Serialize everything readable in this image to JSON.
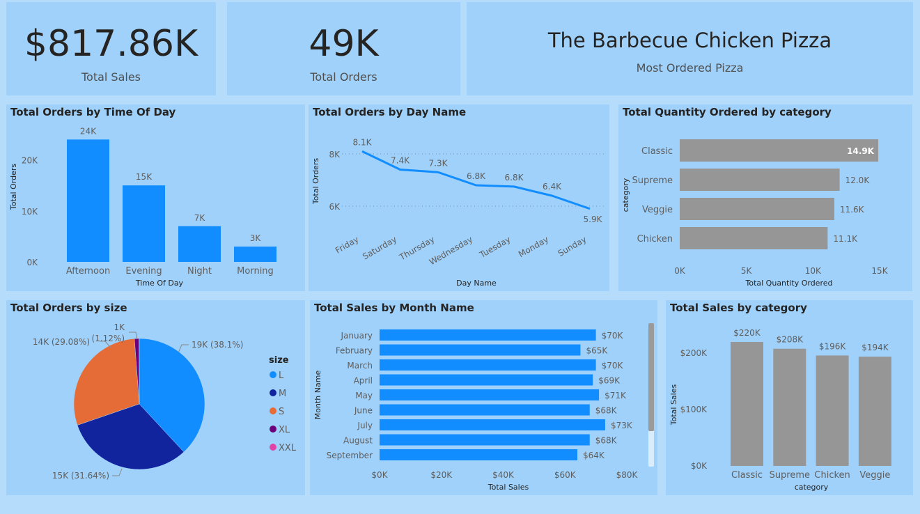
{
  "kpis": {
    "total_sales": {
      "value": "$817.86K",
      "label": "Total Sales"
    },
    "total_orders": {
      "value": "49K",
      "label": "Total Orders"
    },
    "most_ordered": {
      "value": "The Barbecue Chicken Pizza",
      "label": "Most Ordered Pizza"
    }
  },
  "colors": {
    "blue": "#118dff",
    "gray": "#969696",
    "card_bg": "#9fd1fb",
    "page_bg": "#b5dcfb",
    "size_L": "#118dff",
    "size_M": "#12239e",
    "size_S": "#e66c37",
    "size_XL": "#6b007b",
    "size_XXL": "#e044a7"
  },
  "chart_data": [
    {
      "id": "orders_by_time",
      "type": "bar",
      "title": "Total Orders by Time Of Day",
      "xlabel": "Time Of Day",
      "ylabel": "Total Orders",
      "categories": [
        "Afternoon",
        "Evening",
        "Night",
        "Morning"
      ],
      "values": [
        24000,
        15000,
        7000,
        3000
      ],
      "data_labels": [
        "24K",
        "15K",
        "7K",
        "3K"
      ],
      "yticks": [
        "0K",
        "10K",
        "20K"
      ],
      "ylim": [
        0,
        25000
      ]
    },
    {
      "id": "orders_by_day",
      "type": "line",
      "title": "Total Orders by Day Name",
      "xlabel": "Day Name",
      "ylabel": "Total Orders",
      "categories": [
        "Friday",
        "Saturday",
        "Thursday",
        "Wednesday",
        "Tuesday",
        "Monday",
        "Sunday"
      ],
      "values": [
        8100,
        7400,
        7300,
        6800,
        6750,
        6400,
        5900
      ],
      "data_labels": [
        "8.1K",
        "7.4K",
        "7.3K",
        "6.8K",
        "6.8K",
        "6.4K",
        "5.9K"
      ],
      "yticks": [
        "6K",
        "8K"
      ],
      "ylim": [
        5000,
        8600
      ]
    },
    {
      "id": "qty_by_category",
      "type": "bar",
      "orientation": "horizontal",
      "title": "Total Quantity Ordered by category",
      "xlabel": "Total Quantity Ordered",
      "ylabel": "category",
      "categories": [
        "Classic",
        "Supreme",
        "Veggie",
        "Chicken"
      ],
      "values": [
        14900,
        12000,
        11600,
        11100
      ],
      "data_labels": [
        "14.9K",
        "12.0K",
        "11.6K",
        "11.1K"
      ],
      "xticks": [
        "0K",
        "5K",
        "10K",
        "15K"
      ],
      "xlim": [
        0,
        15000
      ]
    },
    {
      "id": "orders_by_size",
      "type": "pie",
      "title": "Total Orders by size",
      "legend_title": "size",
      "legend_position": "right",
      "categories": [
        "L",
        "M",
        "S",
        "XL",
        "XXL"
      ],
      "values": [
        38.1,
        31.64,
        29.08,
        1.12,
        0.06
      ],
      "data_labels": [
        "19K (38.1%)",
        "15K (31.64%)",
        "14K (29.08%)",
        "1K (1.12%)",
        ""
      ]
    },
    {
      "id": "sales_by_month",
      "type": "bar",
      "orientation": "horizontal",
      "title": "Total Sales by Month Name",
      "xlabel": "Total Sales",
      "ylabel": "Month Name",
      "categories": [
        "January",
        "February",
        "March",
        "April",
        "May",
        "June",
        "July",
        "August",
        "September"
      ],
      "values": [
        70000,
        65000,
        70000,
        69000,
        71000,
        68000,
        73000,
        68000,
        64000
      ],
      "data_labels": [
        "$70K",
        "$65K",
        "$70K",
        "$69K",
        "$71K",
        "$68K",
        "$73K",
        "$68K",
        "$64K"
      ],
      "xticks": [
        "$0K",
        "$20K",
        "$40K",
        "$60K",
        "$80K"
      ],
      "xlim": [
        0,
        80000
      ]
    },
    {
      "id": "sales_by_category",
      "type": "bar",
      "title": "Total Sales by category",
      "xlabel": "category",
      "ylabel": "Total Sales",
      "categories": [
        "Classic",
        "Supreme",
        "Chicken",
        "Veggie"
      ],
      "values": [
        220000,
        208000,
        196000,
        194000
      ],
      "data_labels": [
        "$220K",
        "$208K",
        "$196K",
        "$194K"
      ],
      "yticks": [
        "$0K",
        "$100K",
        "$200K"
      ],
      "ylim": [
        0,
        240000
      ]
    }
  ]
}
